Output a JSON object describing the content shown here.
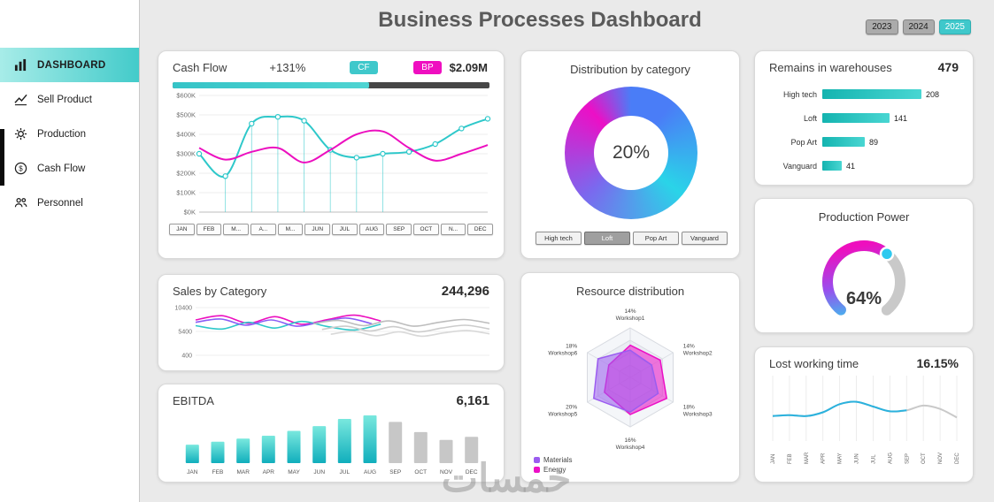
{
  "header": {
    "title": "Business Processes Dashboard",
    "years": [
      {
        "label": "2023",
        "active": false
      },
      {
        "label": "2024",
        "active": false
      },
      {
        "label": "2025",
        "active": true
      }
    ]
  },
  "watermark": "خمسات",
  "sidebar": {
    "items": [
      {
        "label": "DASHBOARD",
        "icon": "dashboard-bars-icon",
        "active": true
      },
      {
        "label": "Sell Product",
        "icon": "trend-line-icon",
        "active": false
      },
      {
        "label": "Production",
        "icon": "gear-icon",
        "active": false
      },
      {
        "label": "Cash Flow",
        "icon": "dollar-icon",
        "active": false
      },
      {
        "label": "Personnel",
        "icon": "people-icon",
        "active": false
      }
    ]
  },
  "cash_flow": {
    "title": "Cash Flow",
    "change": "+131%",
    "badges": [
      {
        "label": "CF",
        "color": "#3fc8cb"
      },
      {
        "label": "BP",
        "color": "#ef0fc0"
      }
    ],
    "amount": "$2.09M",
    "progress_pct": 62,
    "chart_data": {
      "type": "line",
      "x": [
        "JAN",
        "FEB",
        "MAR",
        "APR",
        "MAY",
        "JUN",
        "JUL",
        "AUG",
        "SEP",
        "OCT",
        "NOV",
        "DEC"
      ],
      "x_display": [
        "JAN",
        "FEB",
        "M...",
        "A...",
        "M...",
        "JUN",
        "JUL",
        "AUG",
        "SEP",
        "OCT",
        "N...",
        "DEC"
      ],
      "y_ticks": [
        "$600K",
        "$500K",
        "$400K",
        "$300K",
        "$200K",
        "$100K",
        "$0K"
      ],
      "ylim": [
        0,
        600
      ],
      "series": [
        {
          "name": "CF",
          "color": "#2ec8ca",
          "markers": true,
          "drop_lines": [
            1,
            2,
            3,
            4,
            5,
            6,
            7
          ],
          "values": [
            300,
            185,
            455,
            490,
            470,
            320,
            280,
            300,
            310,
            350,
            430,
            480
          ]
        },
        {
          "name": "BP",
          "color": "#ec0fbf",
          "markers": false,
          "values": [
            330,
            270,
            310,
            330,
            255,
            320,
            400,
            415,
            330,
            265,
            300,
            345
          ]
        }
      ]
    }
  },
  "sales": {
    "title": "Sales by Category",
    "total": "244,296",
    "chart_data": {
      "type": "line",
      "y_ticks": [
        "10400",
        "5400",
        "400"
      ],
      "ylim": [
        400,
        10400
      ],
      "series": [
        {
          "name": "line1",
          "color": "#ec0fbf",
          "range": [
            0,
            0.63
          ],
          "values": [
            7800,
            8700,
            7100,
            8500,
            6900,
            7900,
            8800,
            7600
          ]
        },
        {
          "name": "line2",
          "color": "#2ec8ca",
          "range": [
            0,
            0.63
          ],
          "values": [
            6600,
            5900,
            7300,
            6100,
            7500,
            6400,
            5700,
            6900
          ]
        },
        {
          "name": "line3",
          "color": "#8a5cf6",
          "range": [
            0,
            0.6
          ],
          "values": [
            7300,
            8000,
            6700,
            7800,
            6500,
            7400,
            8200,
            7000
          ]
        },
        {
          "name": "line4",
          "color": "#bdbdbd",
          "range": [
            0.4,
            1
          ],
          "values": [
            7000,
            7700,
            6600,
            7600,
            6500,
            7300,
            7900,
            7100
          ]
        },
        {
          "name": "line5",
          "color": "#cccccc",
          "range": [
            0.43,
            1
          ],
          "values": [
            5800,
            6500,
            5500,
            6400,
            5300,
            6100,
            6700,
            5900
          ]
        },
        {
          "name": "line6",
          "color": "#d8d8d8",
          "range": [
            0.46,
            1
          ],
          "values": [
            4800,
            5400,
            4500,
            5300,
            4400,
            5100,
            5600,
            4900
          ]
        }
      ]
    }
  },
  "ebitda": {
    "title": "EBITDA",
    "total": "6,161",
    "chart_data": {
      "type": "bar",
      "categories": [
        "JAN",
        "FEB",
        "MAR",
        "APR",
        "MAY",
        "JUN",
        "JUL",
        "AUG",
        "SEP",
        "OCT",
        "NOV",
        "DEC"
      ],
      "values": [
        310,
        360,
        410,
        460,
        540,
        620,
        740,
        800,
        690,
        520,
        390,
        440
      ],
      "highlight_count": 8,
      "highlight_colors": [
        "#10aebc",
        "#79e8de"
      ],
      "muted_color": "#c7c7c7"
    }
  },
  "distribution": {
    "title": "Distribution by category",
    "center_label": "20%",
    "buttons": [
      {
        "label": "High tech",
        "active": false
      },
      {
        "label": "Loft",
        "active": true
      },
      {
        "label": "Pop Art",
        "active": false
      },
      {
        "label": "Vanguard",
        "active": false
      }
    ],
    "chart_data": {
      "type": "pie",
      "segments": [
        {
          "color": "#4a7df7",
          "value": 22
        },
        {
          "color": "#2ad4e8",
          "value": 28
        },
        {
          "color": "#7b68ee",
          "value": 26
        },
        {
          "color": "#ec0fc6",
          "value": 24
        }
      ]
    }
  },
  "resources": {
    "title": "Resource distribution",
    "chart_data": {
      "type": "radar",
      "categories": [
        "Workshop1",
        "Workshop2",
        "Workshop3",
        "Workshop4",
        "Workshop5",
        "Workshop6"
      ],
      "axis_labels": [
        "14%",
        "14%",
        "18%",
        "16%",
        "20%",
        "18%"
      ],
      "max": 20,
      "series": [
        {
          "name": "Materials",
          "color": "#9b5cf0",
          "values": [
            11,
            10,
            13,
            14,
            17,
            15
          ]
        },
        {
          "name": "Energy",
          "color": "#ec0fc6",
          "values": [
            13,
            14,
            17,
            15,
            12,
            10
          ]
        }
      ]
    }
  },
  "warehouses": {
    "title": "Remains in warehouses",
    "total": "479",
    "chart_data": {
      "type": "bar",
      "categories": [
        "High tech",
        "Loft",
        "Pop Art",
        "Vanguard"
      ],
      "values": [
        208,
        141,
        89,
        41
      ]
    }
  },
  "production_power": {
    "title": "Production Power",
    "value_label": "64%",
    "chart_data": {
      "type": "gauge",
      "value": 64,
      "max": 100
    }
  },
  "lost_time": {
    "title": "Lost working time",
    "value": "16.15%",
    "chart_data": {
      "type": "line",
      "categories": [
        "JAN",
        "FEB",
        "MAR",
        "APR",
        "MAY",
        "JUN",
        "JUL",
        "AUG",
        "SEP",
        "OCT",
        "NOV",
        "DEC"
      ],
      "values": [
        30,
        32,
        30,
        38,
        55,
        60,
        50,
        40,
        42,
        52,
        45,
        27
      ],
      "colored_until": 8,
      "line_color": "#2ab2de",
      "muted_color": "#c9c9c9"
    }
  }
}
